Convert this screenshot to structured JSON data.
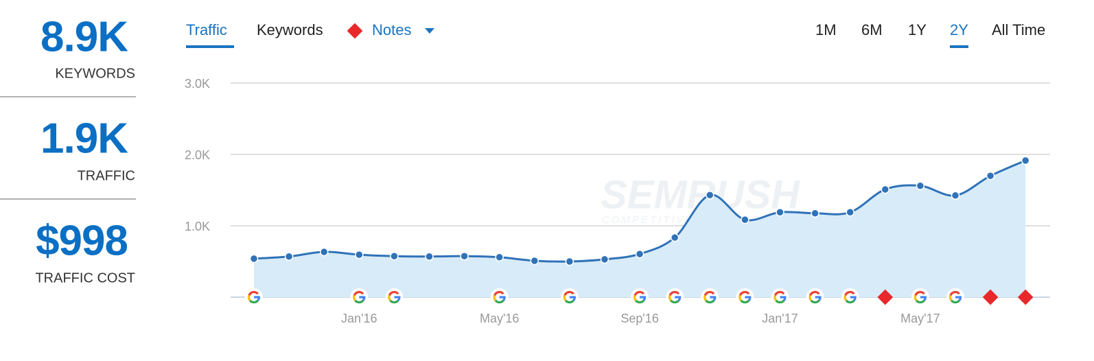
{
  "stats": [
    {
      "value": "8.9K",
      "label": "KEYWORDS"
    },
    {
      "value": "1.9K",
      "label": "TRAFFIC"
    },
    {
      "value": "$998",
      "label": "TRAFFIC COST"
    }
  ],
  "tabs": [
    "Traffic",
    "Keywords",
    "Notes"
  ],
  "ranges": [
    "1M",
    "6M",
    "1Y",
    "2Y",
    "All Time"
  ],
  "watermark": "SEMRUSH",
  "watermark_sub": "COMPETITIVE INTELLIGENCE",
  "chart_data": {
    "type": "area",
    "categories": [
      null,
      null,
      null,
      "Jan'16",
      null,
      null,
      null,
      "May'16",
      null,
      null,
      null,
      "Sep'16",
      null,
      null,
      null,
      "Jan'17",
      null,
      null,
      null,
      "May'17",
      null,
      null,
      null
    ],
    "values": [
      540,
      570,
      635,
      595,
      575,
      570,
      575,
      560,
      510,
      500,
      530,
      605,
      835,
      1430,
      1085,
      1190,
      1175,
      1190,
      1510,
      1560,
      1425,
      1700,
      1915
    ],
    "color": "#2f72b8",
    "fill": "#d8ebf9",
    "ylim": [
      0,
      3000
    ],
    "yticks": [
      {
        "value": 1000,
        "label": "1.0K"
      },
      {
        "value": 2000,
        "label": "2.0K"
      },
      {
        "value": 3000,
        "label": "3.0K"
      }
    ],
    "grid": true
  }
}
